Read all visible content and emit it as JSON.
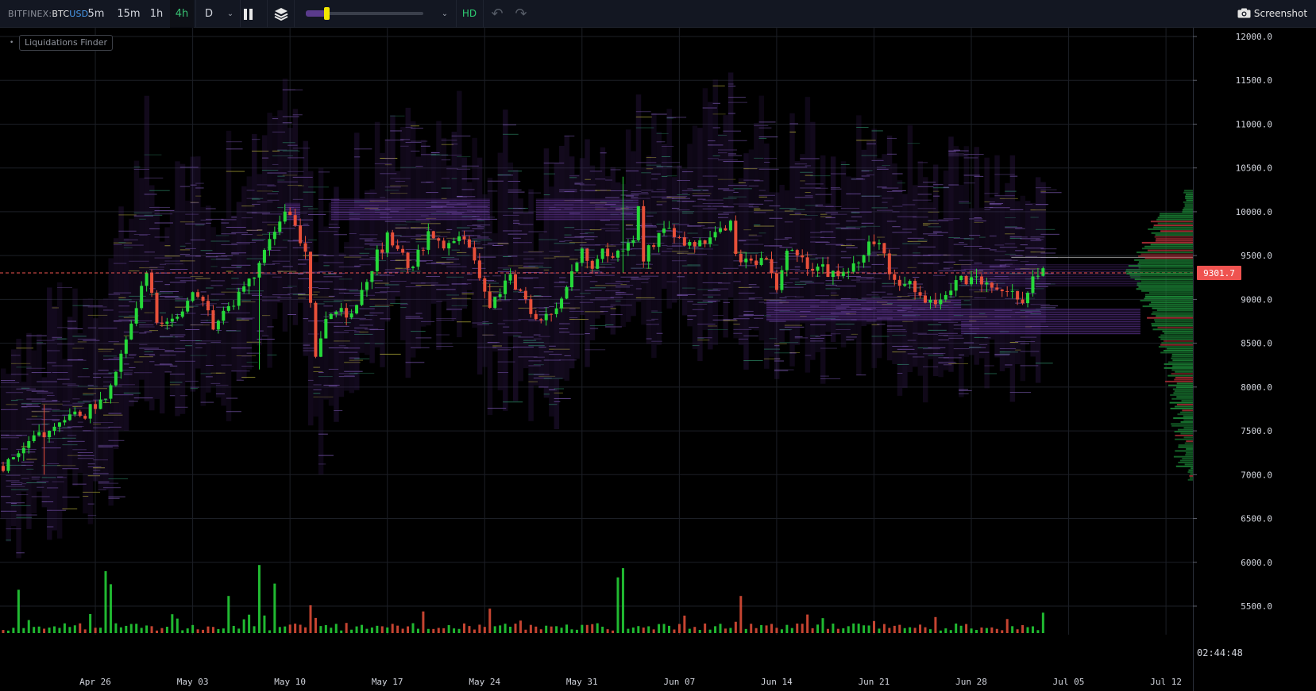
{
  "toolbar": {
    "exchange": "BITFINEX:",
    "base": "BTC",
    "quote": "USD",
    "timeframes": [
      "5m",
      "15m",
      "1h",
      "4h",
      "D"
    ],
    "active_timeframe": "4h",
    "hd_label": "HD",
    "screenshot_label": "Screenshot",
    "icons": [
      "chevron-down-icon",
      "bar-style-icon",
      "layers-icon",
      "undo-icon",
      "redo-icon",
      "camera-icon"
    ]
  },
  "legend": {
    "label": "Liquidations Finder"
  },
  "clock": "02:44:48",
  "colors": {
    "up": "#26d93a",
    "down": "#e8503a",
    "heatmap": "#5a2e8c",
    "price_line": "#ef5350",
    "background": "#000000",
    "grid": "#1c1f26"
  },
  "chart_data": {
    "type": "candlestick-heatmap",
    "ylim": [
      5200,
      12150
    ],
    "y_ticks": [
      "12000.0",
      "11500.0",
      "11000.0",
      "10500.0",
      "10000.0",
      "9500.0",
      "9000.0",
      "8500.0",
      "8000.0",
      "7500.0",
      "7000.0",
      "6500.0",
      "6000.0",
      "5500.0"
    ],
    "x_ticks": [
      "Apr 26",
      "May 03",
      "May 10",
      "May 17",
      "May 24",
      "May 31",
      "Jun 07",
      "Jun 14",
      "Jun 21",
      "Jun 28",
      "Jul 05",
      "Jul 12"
    ],
    "current_price": "9301.7",
    "anchors": [
      [
        0,
        7100
      ],
      [
        4,
        7350
      ],
      [
        8,
        7480
      ],
      [
        12,
        7600
      ],
      [
        16,
        7700
      ],
      [
        20,
        7900
      ],
      [
        24,
        8500
      ],
      [
        26,
        8900
      ],
      [
        28,
        9300
      ],
      [
        30,
        8750
      ],
      [
        32,
        8800
      ],
      [
        35,
        8900
      ],
      [
        38,
        9100
      ],
      [
        41,
        8700
      ],
      [
        44,
        8900
      ],
      [
        47,
        9150
      ],
      [
        50,
        9400
      ],
      [
        53,
        9800
      ],
      [
        55,
        10000
      ],
      [
        57,
        9800
      ],
      [
        59,
        9600
      ],
      [
        61,
        8300
      ],
      [
        63,
        8750
      ],
      [
        65,
        8900
      ],
      [
        67,
        8800
      ],
      [
        70,
        9100
      ],
      [
        73,
        9500
      ],
      [
        75,
        9700
      ],
      [
        77,
        9600
      ],
      [
        79,
        9350
      ],
      [
        81,
        9500
      ],
      [
        83,
        9750
      ],
      [
        85,
        9700
      ],
      [
        87,
        9600
      ],
      [
        89,
        9750
      ],
      [
        91,
        9650
      ],
      [
        93,
        9300
      ],
      [
        95,
        8950
      ],
      [
        97,
        9100
      ],
      [
        99,
        9250
      ],
      [
        101,
        9100
      ],
      [
        104,
        8750
      ],
      [
        106,
        8850
      ],
      [
        108,
        8850
      ],
      [
        111,
        9300
      ],
      [
        113,
        9550
      ],
      [
        115,
        9400
      ],
      [
        117,
        9600
      ],
      [
        119,
        9450
      ],
      [
        121,
        9550
      ],
      [
        123,
        9700
      ],
      [
        124,
        10000
      ],
      [
        125,
        9500
      ],
      [
        127,
        9600
      ],
      [
        129,
        9800
      ],
      [
        131,
        9700
      ],
      [
        133,
        9650
      ],
      [
        135,
        9600
      ],
      [
        137,
        9700
      ],
      [
        139,
        9700
      ],
      [
        141,
        9800
      ],
      [
        142,
        9900
      ],
      [
        143,
        9450
      ],
      [
        145,
        9400
      ],
      [
        147,
        9450
      ],
      [
        149,
        9400
      ],
      [
        151,
        9100
      ],
      [
        153,
        9500
      ],
      [
        155,
        9500
      ],
      [
        157,
        9350
      ],
      [
        159,
        9400
      ],
      [
        161,
        9300
      ],
      [
        163,
        9300
      ],
      [
        165,
        9300
      ],
      [
        167,
        9400
      ],
      [
        169,
        9700
      ],
      [
        171,
        9650
      ],
      [
        173,
        9300
      ],
      [
        175,
        9200
      ],
      [
        177,
        9150
      ],
      [
        179,
        9100
      ],
      [
        181,
        8950
      ],
      [
        183,
        9050
      ],
      [
        185,
        9150
      ],
      [
        187,
        9200
      ],
      [
        189,
        9250
      ],
      [
        191,
        9150
      ],
      [
        193,
        9100
      ],
      [
        195,
        9050
      ],
      [
        197,
        9050
      ],
      [
        199,
        9000
      ],
      [
        201,
        9200
      ],
      [
        203,
        9301.7
      ]
    ],
    "spikes": [
      {
        "i": 121,
        "hi": 10400,
        "lo": 9300
      },
      {
        "i": 50,
        "hi": 9400,
        "lo": 8200
      },
      {
        "i": 8,
        "hi": 7800,
        "lo": 7000
      }
    ],
    "volume_peaks": [
      {
        "i": 20,
        "v": 1.0
      },
      {
        "i": 21,
        "v": 0.7
      },
      {
        "i": 50,
        "v": 1.1
      },
      {
        "i": 53,
        "v": 0.8
      },
      {
        "i": 44,
        "v": 0.6
      },
      {
        "i": 120,
        "v": 0.9
      },
      {
        "i": 121,
        "v": 1.05
      },
      {
        "i": 144,
        "v": 0.6
      },
      {
        "i": 3,
        "v": 0.7
      },
      {
        "i": 60,
        "v": 0.45
      },
      {
        "i": 82,
        "v": 0.35
      },
      {
        "i": 157,
        "v": 0.3
      }
    ],
    "heatmap_bands": [
      {
        "from": 55,
        "to": 58,
        "top": 10100,
        "bottom": 9900,
        "strength": 0.9
      },
      {
        "from": 64,
        "to": 95,
        "top": 10150,
        "bottom": 9900,
        "strength": 0.8
      },
      {
        "from": 104,
        "to": 124,
        "top": 10150,
        "bottom": 9900,
        "strength": 0.75
      },
      {
        "from": 149,
        "to": 187,
        "top": 9000,
        "bottom": 8750,
        "strength": 0.85
      },
      {
        "from": 187,
        "to": 222,
        "top": 8900,
        "bottom": 8600,
        "strength": 0.8
      },
      {
        "from": 187,
        "to": 222,
        "top": 9400,
        "bottom": 9150,
        "strength": 0.45
      }
    ],
    "profile_resistance": 9480
  }
}
